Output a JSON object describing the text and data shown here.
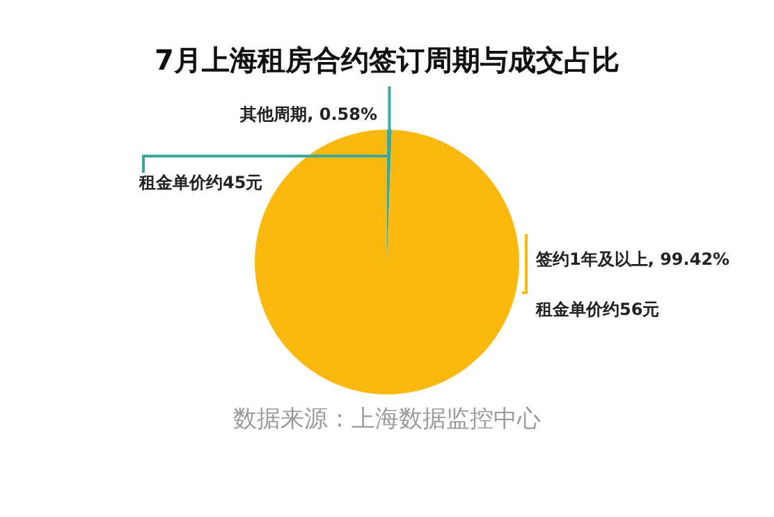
{
  "chart_data": {
    "type": "pie",
    "title": "7月上海租房合约签订周期与成交占比",
    "categories": [
      "其他周期",
      "签约1年及以上"
    ],
    "values": [
      0.58,
      99.42
    ],
    "value_labels": [
      "0.58%",
      "99.42%"
    ],
    "colors": [
      "#3fa79a",
      "#fbb910"
    ],
    "annotations": [
      "租金单价约45元",
      "租金单价约56元",
      "数据来源：上海数据监控中心"
    ]
  }
}
